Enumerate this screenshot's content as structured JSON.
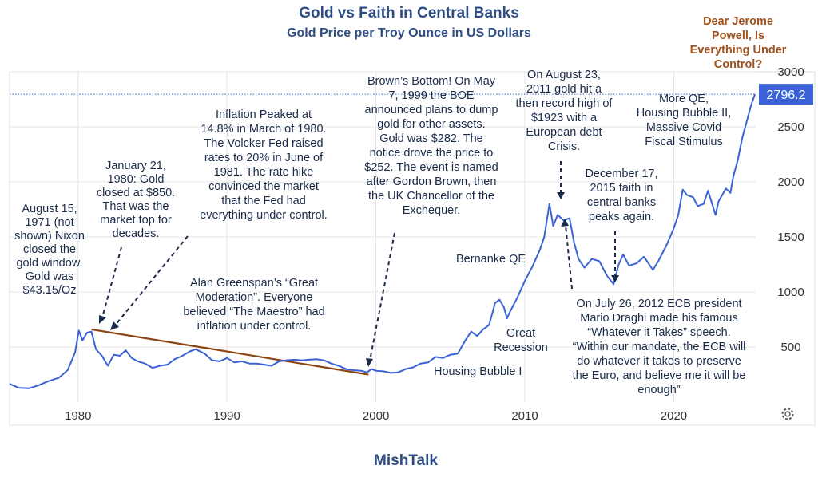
{
  "chart_data": {
    "type": "line",
    "title": "Gold vs Faith in Central Banks",
    "subtitle": "Gold Price per Troy Ounce in US Dollars",
    "xlim": [
      1975.4,
      2025.5
    ],
    "ylim": [
      0,
      3000
    ],
    "x_ticks": [
      "1980",
      "1990",
      "2000",
      "2010",
      "2020"
    ],
    "x_tick_values": [
      1980,
      1990,
      2000,
      2010,
      2020
    ],
    "y_ticks": [
      "500",
      "1000",
      "1500",
      "2000",
      "2500",
      "3000"
    ],
    "y_tick_values": [
      500,
      1000,
      1500,
      2000,
      2500,
      3000
    ],
    "grid": true,
    "line_color": "#3b62d6",
    "trend_color": "#8b4513",
    "last_value": "2796.2",
    "last_value_raw": 2796.2,
    "series": [
      {
        "x": [
          1975.4,
          1976.0,
          1976.7,
          1977.3,
          1978.0,
          1978.7,
          1979.3,
          1979.8,
          1980.05,
          1980.3,
          1980.6,
          1980.9,
          1981.2,
          1981.6,
          1982.0,
          1982.4,
          1982.8,
          1983.2,
          1983.6,
          1984.0,
          1984.5,
          1985.0,
          1985.5,
          1986.0,
          1986.5,
          1987.0,
          1987.5,
          1987.9,
          1988.5,
          1989.0,
          1989.5,
          1990.0,
          1990.5,
          1991.0,
          1991.5,
          1992.0,
          1992.5,
          1993.0,
          1993.5,
          1994.0,
          1994.5,
          1995.0,
          1995.5,
          1996.0,
          1996.5,
          1997.0,
          1997.5,
          1998.0,
          1998.5,
          1999.0,
          1999.4,
          1999.7,
          2000.0,
          2000.5,
          2001.0,
          2001.5,
          2002.0,
          2002.5,
          2003.0,
          2003.5,
          2004.0,
          2004.5,
          2005.0,
          2005.5,
          2006.0,
          2006.4,
          2006.8,
          2007.2,
          2007.6,
          2008.0,
          2008.3,
          2008.6,
          2008.8,
          2009.0,
          2009.5,
          2010.0,
          2010.5,
          2011.0,
          2011.3,
          2011.65,
          2011.9,
          2012.2,
          2012.6,
          2013.0,
          2013.3,
          2013.6,
          2014.0,
          2014.5,
          2015.0,
          2015.5,
          2015.96,
          2016.3,
          2016.6,
          2017.0,
          2017.5,
          2018.0,
          2018.6,
          2019.0,
          2019.5,
          2020.0,
          2020.3,
          2020.6,
          2020.9,
          2021.3,
          2021.6,
          2022.0,
          2022.3,
          2022.8,
          2023.0,
          2023.5,
          2023.8,
          2024.0,
          2024.3,
          2024.6,
          2024.9,
          2025.2,
          2025.45
        ],
        "y": [
          165,
          130,
          125,
          150,
          190,
          220,
          290,
          450,
          650,
          560,
          630,
          640,
          480,
          420,
          330,
          430,
          420,
          470,
          400,
          370,
          350,
          310,
          330,
          340,
          390,
          420,
          460,
          480,
          440,
          380,
          370,
          400,
          360,
          370,
          350,
          350,
          340,
          330,
          370,
          380,
          385,
          380,
          385,
          390,
          380,
          350,
          330,
          300,
          290,
          285,
          270,
          300,
          285,
          280,
          265,
          270,
          300,
          315,
          350,
          360,
          410,
          400,
          430,
          440,
          560,
          640,
          600,
          660,
          700,
          900,
          930,
          860,
          760,
          820,
          950,
          1100,
          1230,
          1380,
          1500,
          1800,
          1600,
          1700,
          1650,
          1670,
          1450,
          1300,
          1220,
          1300,
          1280,
          1150,
          1070,
          1250,
          1340,
          1240,
          1260,
          1320,
          1200,
          1290,
          1420,
          1580,
          1700,
          1930,
          1880,
          1860,
          1780,
          1800,
          1920,
          1700,
          1820,
          1940,
          1900,
          2050,
          2200,
          2400,
          2550,
          2700,
          2796.2
        ]
      }
    ],
    "trend_line": {
      "x": [
        1980.9,
        1999.5
      ],
      "y": [
        660,
        250
      ]
    },
    "annotations": {
      "nixon": [
        "August 15,",
        "1971 (not",
        "shown) Nixon",
        "closed the",
        "gold window.",
        "Gold was",
        "$43.15/Oz"
      ],
      "jan1980": [
        "January 21,",
        "1980: Gold",
        "closed at $850.",
        "That was the",
        "market top for",
        "decades."
      ],
      "inflation": [
        "Inflation Peaked at",
        "14.8% in March of 1980.",
        "The Volcker Fed raised",
        "rates to 20% in June of",
        "1981. The rate hike",
        "convinced the market",
        "that the Fed had",
        "everything under control."
      ],
      "greenspan": [
        "Alan Greenspan’s “Great",
        "Moderation”. Everyone",
        "believed “The Maestro” had",
        "inflation under control."
      ],
      "brown": [
        "Brown’s Bottom! On May",
        "7, 1999 the BOE",
        "announced plans to dump",
        "gold for other assets.",
        "Gold was $282. The",
        "notice drove the price to",
        "$252. The event is named",
        "after Gordon Brown, then",
        "the UK Chancellor of the",
        "Exchequer."
      ],
      "aug2011": [
        "On August 23,",
        "2011 gold hit a",
        "then record high of",
        "$1923 with a",
        "European debt",
        "Crisis."
      ],
      "dec2015": [
        "December 17,",
        "2015 faith in",
        "central banks",
        "peaks again."
      ],
      "moreqe": [
        "More QE,",
        "Housing Bubble II,",
        "Massive Covid",
        "Fiscal Stimulus"
      ],
      "bernanke": "Bernanke QE",
      "great_recession": [
        "Great",
        "Recession"
      ],
      "housing1": "Housing Bubble I",
      "draghi": [
        "On July 26, 2012 ECB president",
        "Mario Draghi made his famous",
        "“Whatever it Takes” speech.",
        "“Within our mandate, the ECB will",
        "do whatever it takes to preserve",
        "the Euro, and believe me it will be",
        "enough”"
      ],
      "powell": [
        "Dear Jerome",
        "Powell, Is",
        "Everything Under",
        "Control?"
      ]
    },
    "source": "MishTalk",
    "settings_icon": "gear-icon"
  }
}
